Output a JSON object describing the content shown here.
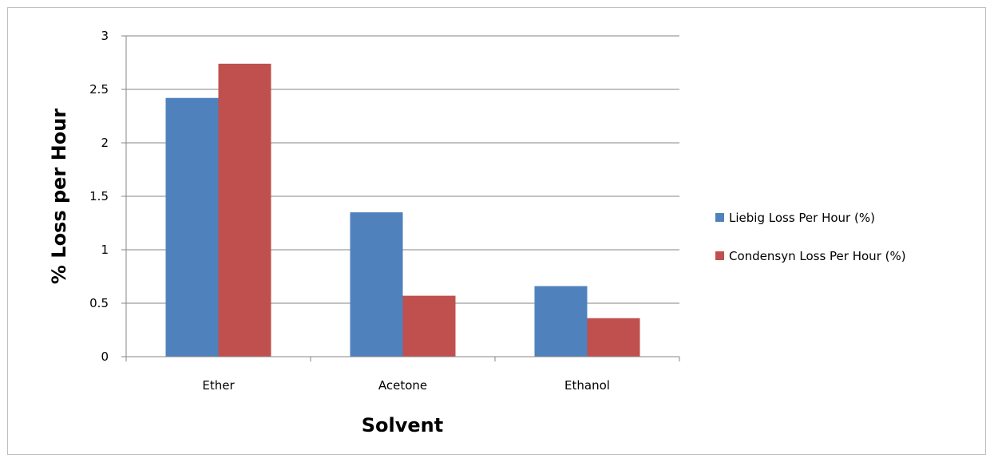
{
  "chart_data": {
    "type": "bar",
    "categories": [
      "Ether",
      "Acetone",
      "Ethanol"
    ],
    "series": [
      {
        "name": "Liebig Loss Per Hour (%)",
        "values": [
          2.42,
          1.35,
          0.66
        ],
        "color": "#4f81bd"
      },
      {
        "name": "Condensyn Loss Per Hour (%)",
        "values": [
          2.74,
          0.57,
          0.36
        ],
        "color": "#c0504d"
      }
    ],
    "xlabel": "Solvent",
    "ylabel": "% Loss per Hour",
    "ylim": [
      0,
      3
    ],
    "yticks": [
      "0",
      "0.5",
      "1",
      "1.5",
      "2",
      "2.5",
      "3"
    ],
    "grid": true,
    "legend": "right"
  }
}
